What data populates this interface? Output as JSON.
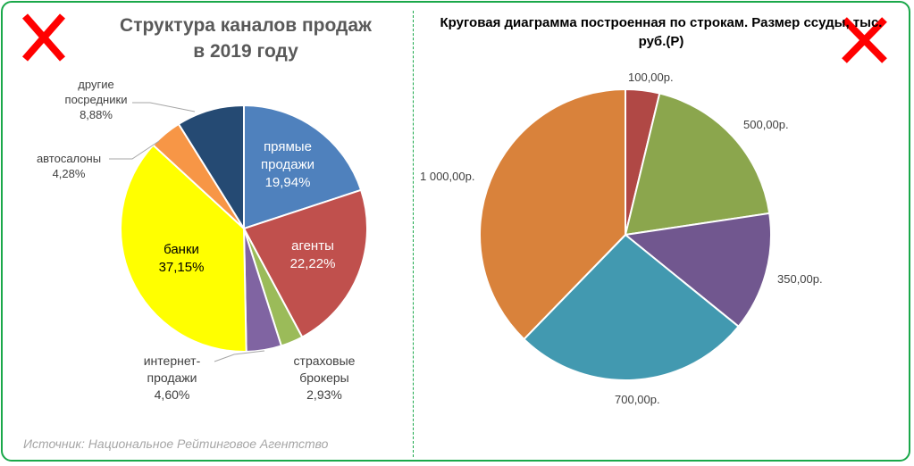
{
  "chart_data": [
    {
      "type": "pie",
      "title": "Структура каналов продаж в 2019 году",
      "title_lines": [
        "Структура каналов продаж",
        "в 2019 году"
      ],
      "slices": [
        {
          "label": "прямые продажи",
          "lines": [
            "прямые",
            "продажи"
          ],
          "value": 19.94,
          "text": "19,94%",
          "color": "#4f81bd"
        },
        {
          "label": "агенты",
          "lines": [
            "агенты"
          ],
          "value": 22.22,
          "text": "22,22%",
          "color": "#c0504d"
        },
        {
          "label": "страховые брокеры",
          "lines": [
            "страховые",
            "брокеры"
          ],
          "value": 2.93,
          "text": "2,93%",
          "color": "#9bbb59"
        },
        {
          "label": "интернет-продажи",
          "lines": [
            "интернет-",
            "продажи"
          ],
          "value": 4.6,
          "text": "4,60%",
          "color": "#8064a2"
        },
        {
          "label": "банки",
          "lines": [
            "банки"
          ],
          "value": 37.15,
          "text": "37,15%",
          "color": "#ffff00"
        },
        {
          "label": "автосалоны",
          "lines": [
            "автосалоны"
          ],
          "value": 4.28,
          "text": "4,28%",
          "color": "#f79646"
        },
        {
          "label": "другие посредники",
          "lines": [
            "другие",
            "посредники"
          ],
          "value": 8.88,
          "text": "8,88%",
          "color": "#254a73"
        }
      ],
      "source": "Источник: Национальное Рейтинговое Агентство"
    },
    {
      "type": "pie",
      "title": "Круговая диаграмма построенная по строкам. Размер ссуды, тыс. руб.(Р)",
      "title_lines": [
        "Круговая диаграмма построенная по строкам. Размер ссуды, тыс.",
        "руб.(Р)"
      ],
      "slices": [
        {
          "value": 100,
          "text": "100,00р.",
          "color": "#b04845"
        },
        {
          "value": 500,
          "text": "500,00р.",
          "color": "#8ba64d"
        },
        {
          "value": 350,
          "text": "350,00р.",
          "color": "#71578f"
        },
        {
          "value": 700,
          "text": "700,00р.",
          "color": "#4299b0"
        },
        {
          "value": 1000,
          "text": "1 000,00р.",
          "color": "#d9823b"
        }
      ]
    }
  ],
  "marks": {
    "cross_color": "#ff0000",
    "border_color": "#1aa84a"
  }
}
